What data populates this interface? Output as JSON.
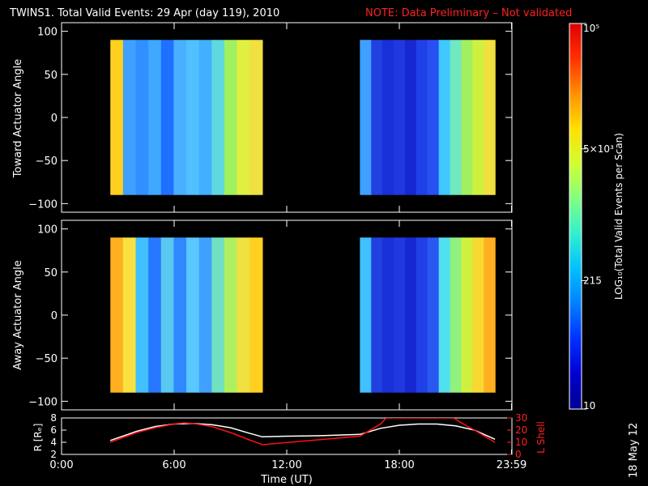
{
  "title": {
    "main": "TWINS1. Total Valid Events: 29 Apr (day 119), 2010",
    "note": "NOTE: Data Preliminary – Not validated"
  },
  "date_stamp": "18 May 12",
  "chart_data": [
    {
      "type": "heatmap",
      "ylabel": "Toward Actuator Angle",
      "ylim": [
        -110,
        110
      ],
      "yticks": [
        "100",
        "50",
        "0",
        "−50",
        "−100"
      ],
      "xlim_hours": [
        0,
        24
      ],
      "angle_range": [
        -90,
        90
      ],
      "segments": [
        {
          "start_hour": 2.6,
          "end_hour": 10.7,
          "colors": [
            "#ffd020",
            "#40a0ff",
            "#3090ff",
            "#40a8ff",
            "#2070ff",
            "#48b0ff",
            "#50c0ff",
            "#40b0ff",
            "#60d8e0",
            "#a0f060",
            "#e0f040",
            "#f0e040"
          ]
        },
        {
          "start_hour": 15.9,
          "end_hour": 23.1,
          "colors": [
            "#40a0ff",
            "#2040e0",
            "#1830d8",
            "#2038e0",
            "#1828d0",
            "#2040e8",
            "#2850f0",
            "#40c8ff",
            "#70e8c0",
            "#a0f060",
            "#d0f040",
            "#f0e040"
          ]
        }
      ]
    },
    {
      "type": "heatmap",
      "ylabel": "Away Actuator Angle",
      "ylim": [
        -110,
        110
      ],
      "yticks": [
        "100",
        "50",
        "0",
        "−50",
        "−100"
      ],
      "xlim_hours": [
        0,
        24
      ],
      "angle_range": [
        -90,
        90
      ],
      "segments": [
        {
          "start_hour": 2.6,
          "end_hour": 10.7,
          "colors": [
            "#ffb020",
            "#f8e040",
            "#40c0ff",
            "#2878ff",
            "#58c8f0",
            "#3088ff",
            "#58c8ff",
            "#40a0ff",
            "#70e0c0",
            "#b0f060",
            "#f0e040",
            "#ffd020"
          ]
        },
        {
          "start_hour": 15.9,
          "end_hour": 23.1,
          "colors": [
            "#40c0ff",
            "#2040e0",
            "#1830d8",
            "#2038e0",
            "#1828d0",
            "#2040e8",
            "#2858f0",
            "#50e0f0",
            "#90f080",
            "#d0f040",
            "#f8d830",
            "#ffb020"
          ]
        }
      ]
    },
    {
      "type": "line",
      "xlabel": "Time (UT)",
      "x_ticks": [
        "0:00",
        "6:00",
        "12:00",
        "18:00",
        "23:59"
      ],
      "x_tick_hours": [
        0,
        6,
        12,
        18,
        23.98
      ],
      "ylabel_left": "R [Rₑ]",
      "ylim_left": [
        2,
        8
      ],
      "yticks_left": [
        "2",
        "4",
        "6",
        "8"
      ],
      "ylabel_right": "L Shell",
      "ylim_right": [
        0,
        30
      ],
      "yticks_right": [
        "0",
        "10",
        "20",
        "30"
      ],
      "series": [
        {
          "color": "#ffffff",
          "axis": "left",
          "x": [
            2.6,
            4,
            5,
            6,
            7,
            8,
            9,
            10,
            10.7,
            12,
            14,
            15.9,
            17,
            18,
            19,
            20,
            21,
            22,
            23.1
          ],
          "y": [
            4.3,
            5.8,
            6.6,
            7.0,
            7.1,
            6.9,
            6.4,
            5.5,
            4.9,
            5.0,
            5.1,
            5.3,
            6.3,
            6.8,
            7.0,
            7.0,
            6.7,
            6.0,
            4.5
          ]
        },
        {
          "color": "#ff1010",
          "axis": "right",
          "x": [
            2.6,
            4,
            5,
            6,
            6.5,
            7,
            8,
            9,
            10,
            10.7,
            15.9,
            17,
            17.3,
            20.9,
            21.3,
            22,
            23.1
          ],
          "y": [
            10,
            18,
            22,
            25,
            26,
            25.5,
            23,
            18,
            12,
            8,
            15,
            25,
            30,
            30,
            26,
            20,
            10
          ]
        }
      ]
    }
  ],
  "colorbar": {
    "label": "LOG₁₀(Total Valid Events per Scan)",
    "ticks": [
      "10",
      "215",
      "5×10³",
      "10⁵"
    ],
    "tick_values": [
      10,
      215,
      5000,
      100000
    ],
    "range": [
      10,
      100000
    ],
    "colors": [
      "#000090",
      "#0000d0",
      "#0030ff",
      "#0080ff",
      "#00c0ff",
      "#30f0d0",
      "#80ff80",
      "#d0ff30",
      "#ffe000",
      "#ff9000",
      "#ff3000",
      "#e00000"
    ]
  }
}
